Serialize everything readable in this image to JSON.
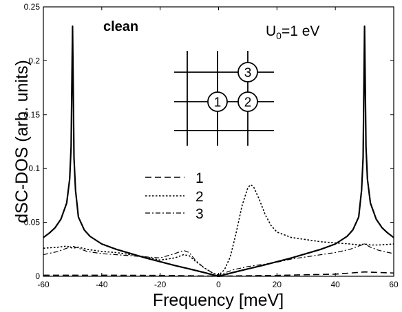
{
  "chart_data": {
    "type": "line",
    "xlabel": "Frequency [meV]",
    "ylabel": "dSC-DOS (arb. units)",
    "xlim": [
      -60,
      60
    ],
    "ylim": [
      0,
      0.25
    ],
    "xticks": [
      -60,
      -40,
      -20,
      0,
      20,
      40,
      60
    ],
    "yticks": [
      0,
      0.05,
      0.1,
      0.15,
      0.2,
      0.25
    ],
    "ytick_labels": [
      "0",
      "0.05",
      "0.1",
      "0.15",
      "0.2",
      "0.25"
    ],
    "annotations": {
      "regime": "clean",
      "u0_prefix": "U",
      "u0_sub": "0",
      "u0_suffix": "=1 eV",
      "site_labels": [
        "1",
        "2",
        "3"
      ]
    },
    "legend": {
      "placement": "center-left",
      "entries": [
        {
          "label": "1",
          "style": "dashed"
        },
        {
          "label": "2",
          "style": "dotted"
        },
        {
          "label": "3",
          "style": "dash-dot"
        }
      ]
    },
    "series": [
      {
        "style": "solid",
        "x": [
          -60,
          -58,
          -56,
          -54,
          -52,
          -51,
          -50.5,
          -50,
          -49.5,
          -49,
          -48,
          -46,
          -44,
          -40,
          -35,
          -30,
          -25,
          -20,
          -15,
          -10,
          -5,
          -2,
          0,
          2,
          5,
          10,
          15,
          20,
          25,
          30,
          35,
          40,
          44,
          46,
          48,
          49,
          49.5,
          50,
          50.5,
          51,
          52,
          54,
          56,
          58,
          60
        ],
        "y": [
          0.036,
          0.04,
          0.045,
          0.053,
          0.068,
          0.09,
          0.12,
          0.232,
          0.11,
          0.08,
          0.055,
          0.043,
          0.037,
          0.03,
          0.025,
          0.021,
          0.017,
          0.0135,
          0.01,
          0.0068,
          0.0035,
          0.0014,
          0.0,
          0.0014,
          0.0035,
          0.0068,
          0.01,
          0.0135,
          0.017,
          0.021,
          0.025,
          0.03,
          0.037,
          0.043,
          0.055,
          0.08,
          0.11,
          0.232,
          0.12,
          0.09,
          0.068,
          0.053,
          0.045,
          0.04,
          0.036
        ]
      },
      {
        "name": "1",
        "style": "dashed",
        "x": [
          -60,
          -40,
          -20,
          -10,
          -5,
          -2,
          0,
          2,
          5,
          10,
          20,
          40,
          45,
          50,
          55,
          60
        ],
        "y": [
          0.001,
          0.001,
          0.0008,
          0.0005,
          0.0003,
          0.0001,
          0.0,
          0.0001,
          0.0003,
          0.0005,
          0.0008,
          0.002,
          0.003,
          0.004,
          0.0035,
          0.003
        ]
      },
      {
        "name": "2",
        "style": "dotted",
        "x": [
          -60,
          -55,
          -52,
          -50,
          -48,
          -45,
          -40,
          -35,
          -30,
          -25,
          -20,
          -15,
          -12,
          -10,
          -8,
          -5,
          -2,
          0,
          2,
          4,
          6,
          8,
          10,
          11,
          12,
          14,
          16,
          18,
          20,
          25,
          30,
          35,
          40,
          45,
          48,
          50,
          52,
          55,
          60
        ],
        "y": [
          0.026,
          0.027,
          0.028,
          0.026,
          0.027,
          0.025,
          0.023,
          0.022,
          0.02,
          0.018,
          0.015,
          0.017,
          0.02,
          0.019,
          0.014,
          0.008,
          0.003,
          0.001,
          0.006,
          0.018,
          0.04,
          0.065,
          0.082,
          0.085,
          0.083,
          0.071,
          0.057,
          0.047,
          0.041,
          0.036,
          0.034,
          0.032,
          0.031,
          0.03,
          0.029,
          0.03,
          0.029,
          0.029,
          0.03
        ]
      },
      {
        "name": "3",
        "style": "dash-dot",
        "x": [
          -60,
          -55,
          -52,
          -50,
          -48,
          -45,
          -40,
          -35,
          -30,
          -25,
          -20,
          -15,
          -12,
          -10,
          -8,
          -5,
          -2,
          0,
          2,
          5,
          10,
          15,
          20,
          25,
          30,
          35,
          40,
          45,
          48,
          50,
          52,
          55,
          60
        ],
        "y": [
          0.02,
          0.023,
          0.026,
          0.028,
          0.026,
          0.023,
          0.021,
          0.02,
          0.019,
          0.018,
          0.017,
          0.021,
          0.024,
          0.022,
          0.015,
          0.008,
          0.003,
          0.001,
          0.003,
          0.006,
          0.009,
          0.011,
          0.013,
          0.016,
          0.018,
          0.02,
          0.022,
          0.025,
          0.028,
          0.03,
          0.027,
          0.024,
          0.021
        ]
      }
    ]
  }
}
